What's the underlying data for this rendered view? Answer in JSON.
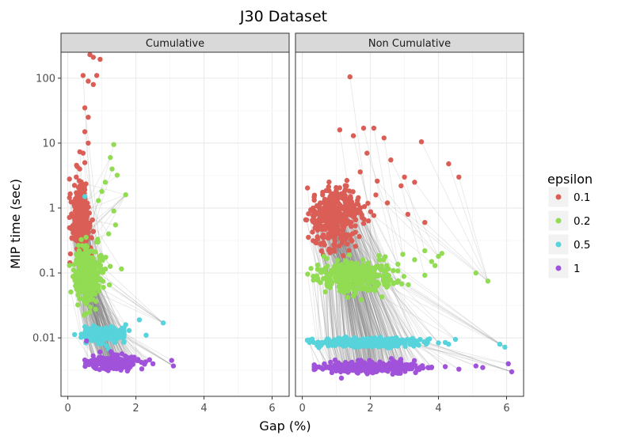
{
  "chart_data": {
    "type": "scatter",
    "title": "J30 Dataset",
    "xlabel": "Gap (%)",
    "ylabel": "MIP time (sec)",
    "xlim": [
      -0.2,
      6.5
    ],
    "ylim_log10": [
      -2.9,
      2.4
    ],
    "y_scale": "log10",
    "x_ticks": [
      0,
      2,
      4,
      6
    ],
    "x_tick_labels": [
      "0",
      "2",
      "4",
      "6"
    ],
    "y_ticks": [
      0.01,
      0.1,
      1,
      10,
      100
    ],
    "y_tick_labels": [
      "0.01",
      "0.1",
      "1",
      "10",
      "100"
    ],
    "legend": {
      "title": "epsilon",
      "placement": "right",
      "entries": [
        {
          "label": "0.1",
          "color": "#db5e56"
        },
        {
          "label": "0.2",
          "color": "#91dc52"
        },
        {
          "label": "0.5",
          "color": "#56d3db"
        },
        {
          "label": "1",
          "color": "#a052db"
        }
      ]
    },
    "connector_color": "#999999",
    "point_generation_seed": 12345,
    "facets": [
      {
        "label": "Cumulative",
        "series": [
          {
            "name": "0.1",
            "color": "#db5e56",
            "count": 340,
            "x_center": 0.3,
            "x_spread": 0.17,
            "x_min": 0.05,
            "x_max": 0.95,
            "y_log_center": -0.2,
            "y_log_spread": 0.28,
            "outliers": [
              [
                0.65,
                230
              ],
              [
                0.75,
                210
              ],
              [
                0.95,
                195
              ],
              [
                0.45,
                110
              ],
              [
                0.85,
                110
              ],
              [
                0.6,
                90
              ],
              [
                0.75,
                80
              ],
              [
                0.5,
                35
              ],
              [
                0.6,
                25
              ],
              [
                0.5,
                15
              ],
              [
                0.6,
                10
              ],
              [
                0.45,
                7
              ],
              [
                0.5,
                5
              ],
              [
                0.35,
                4
              ],
              [
                0.25,
                3
              ]
            ]
          },
          {
            "name": "0.2",
            "color": "#91dc52",
            "count": 300,
            "x_center": 0.45,
            "x_spread": 0.28,
            "x_min": 0.05,
            "x_max": 1.6,
            "y_log_center": -1.0,
            "y_log_spread": 0.22,
            "outliers": [
              [
                1.35,
                9.5
              ],
              [
                1.25,
                6
              ],
              [
                1.3,
                4
              ],
              [
                1.45,
                3.2
              ],
              [
                1.1,
                2.5
              ],
              [
                1.0,
                1.8
              ],
              [
                1.7,
                1.6
              ],
              [
                0.9,
                1.3
              ],
              [
                1.35,
                0.9
              ],
              [
                1.4,
                0.55
              ],
              [
                1.2,
                0.4
              ],
              [
                0.85,
                0.3
              ]
            ]
          },
          {
            "name": "0.5",
            "color": "#56d3db",
            "count": 230,
            "x_center": 0.9,
            "x_spread": 0.4,
            "x_min": 0.2,
            "x_max": 1.65,
            "y_log_center": -1.95,
            "y_log_spread": 0.06,
            "outliers": [
              [
                0.5,
                1.5
              ],
              [
                2.8,
                0.017
              ],
              [
                2.1,
                0.019
              ],
              [
                2.3,
                0.011
              ],
              [
                1.8,
                0.013
              ],
              [
                1.7,
                0.016
              ]
            ]
          },
          {
            "name": "1",
            "color": "#a052db",
            "count": 220,
            "x_center": 1.1,
            "x_spread": 0.45,
            "x_min": 0.5,
            "x_max": 2.6,
            "y_log_center": -2.38,
            "y_log_spread": 0.05,
            "outliers": [
              [
                0.55,
                0.009
              ],
              [
                3.05,
                0.0045
              ],
              [
                3.1,
                0.0037
              ],
              [
                2.5,
                0.004
              ],
              [
                2.4,
                0.0046
              ]
            ]
          }
        ]
      },
      {
        "label": "Non Cumulative",
        "series": [
          {
            "name": "0.1",
            "color": "#db5e56",
            "count": 350,
            "x_center": 0.75,
            "x_spread": 0.45,
            "x_min": 0.1,
            "x_max": 2.7,
            "y_log_center": -0.15,
            "y_log_spread": 0.22,
            "outliers": [
              [
                1.4,
                105
              ],
              [
                1.1,
                16
              ],
              [
                1.8,
                17
              ],
              [
                2.1,
                17
              ],
              [
                1.5,
                13
              ],
              [
                2.4,
                12
              ],
              [
                3.5,
                10.5
              ],
              [
                1.9,
                7
              ],
              [
                2.6,
                5.5
              ],
              [
                4.3,
                4.8
              ],
              [
                3.0,
                3
              ],
              [
                2.2,
                2.6
              ],
              [
                2.9,
                2.2
              ],
              [
                3.3,
                2.5
              ],
              [
                4.6,
                3
              ],
              [
                1.7,
                3.6
              ],
              [
                1.3,
                2.2
              ],
              [
                2.5,
                1.2
              ],
              [
                3.1,
                0.8
              ],
              [
                3.6,
                0.6
              ]
            ]
          },
          {
            "name": "0.2",
            "color": "#91dc52",
            "count": 380,
            "x_center": 1.2,
            "x_spread": 0.7,
            "x_min": 0.1,
            "x_max": 3.6,
            "y_log_center": -1.05,
            "y_log_spread": 0.12,
            "outliers": [
              [
                5.1,
                0.1
              ],
              [
                5.45,
                0.075
              ],
              [
                4.0,
                0.18
              ],
              [
                3.8,
                0.15
              ],
              [
                4.1,
                0.2
              ],
              [
                3.6,
                0.22
              ],
              [
                3.9,
                0.13
              ],
              [
                3.3,
                0.16
              ]
            ]
          },
          {
            "name": "0.5",
            "color": "#56d3db",
            "count": 350,
            "x_center": 1.5,
            "x_spread": 0.9,
            "x_min": 0.15,
            "x_max": 4.0,
            "y_log_center": -2.07,
            "y_log_spread": 0.035,
            "outliers": [
              [
                5.8,
                0.008
              ],
              [
                5.95,
                0.0072
              ],
              [
                4.5,
                0.0095
              ],
              [
                4.3,
                0.008
              ],
              [
                4.2,
                0.0085
              ]
            ]
          },
          {
            "name": "1",
            "color": "#a052db",
            "count": 340,
            "x_center": 1.6,
            "x_spread": 0.9,
            "x_min": 0.35,
            "x_max": 3.8,
            "y_log_center": -2.45,
            "y_log_spread": 0.04,
            "outliers": [
              [
                6.05,
                0.004
              ],
              [
                6.15,
                0.003
              ],
              [
                5.3,
                0.0035
              ],
              [
                5.1,
                0.0037
              ],
              [
                4.6,
                0.0033
              ],
              [
                4.2,
                0.0036
              ],
              [
                1.15,
                0.0024
              ]
            ]
          }
        ]
      }
    ]
  }
}
